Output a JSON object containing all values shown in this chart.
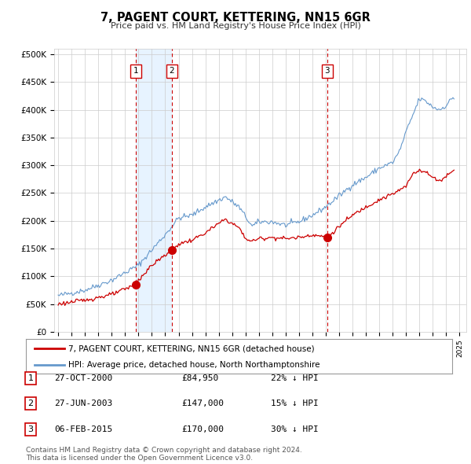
{
  "title": "7, PAGENT COURT, KETTERING, NN15 6GR",
  "subtitle": "Price paid vs. HM Land Registry's House Price Index (HPI)",
  "ytick_labels": [
    "£0",
    "£50K",
    "£100K",
    "£150K",
    "£200K",
    "£250K",
    "£300K",
    "£350K",
    "£400K",
    "£450K",
    "£500K"
  ],
  "yticks": [
    0,
    50000,
    100000,
    150000,
    200000,
    250000,
    300000,
    350000,
    400000,
    450000,
    500000
  ],
  "xlim_start": 1994.7,
  "xlim_end": 2025.5,
  "ylim": [
    0,
    510000
  ],
  "legend_line1": "7, PAGENT COURT, KETTERING, NN15 6GR (detached house)",
  "legend_line2": "HPI: Average price, detached house, North Northamptonshire",
  "transactions": [
    {
      "num": 1,
      "date": "27-OCT-2000",
      "price": "84,950",
      "pct": "22%",
      "dir": "↓",
      "year": 2000.82
    },
    {
      "num": 2,
      "date": "27-JUN-2003",
      "price": "147,000",
      "pct": "15%",
      "dir": "↓",
      "year": 2003.49
    },
    {
      "num": 3,
      "date": "06-FEB-2015",
      "price": "170,000",
      "pct": "30%",
      "dir": "↓",
      "year": 2015.1
    }
  ],
  "footnote1": "Contains HM Land Registry data © Crown copyright and database right 2024.",
  "footnote2": "This data is licensed under the Open Government Licence v3.0.",
  "price_paid_color": "#cc0000",
  "hpi_color": "#6699cc",
  "shade_color": "#ddeeff",
  "vline_color": "#cc0000",
  "grid_color": "#cccccc",
  "background_color": "#ffffff"
}
